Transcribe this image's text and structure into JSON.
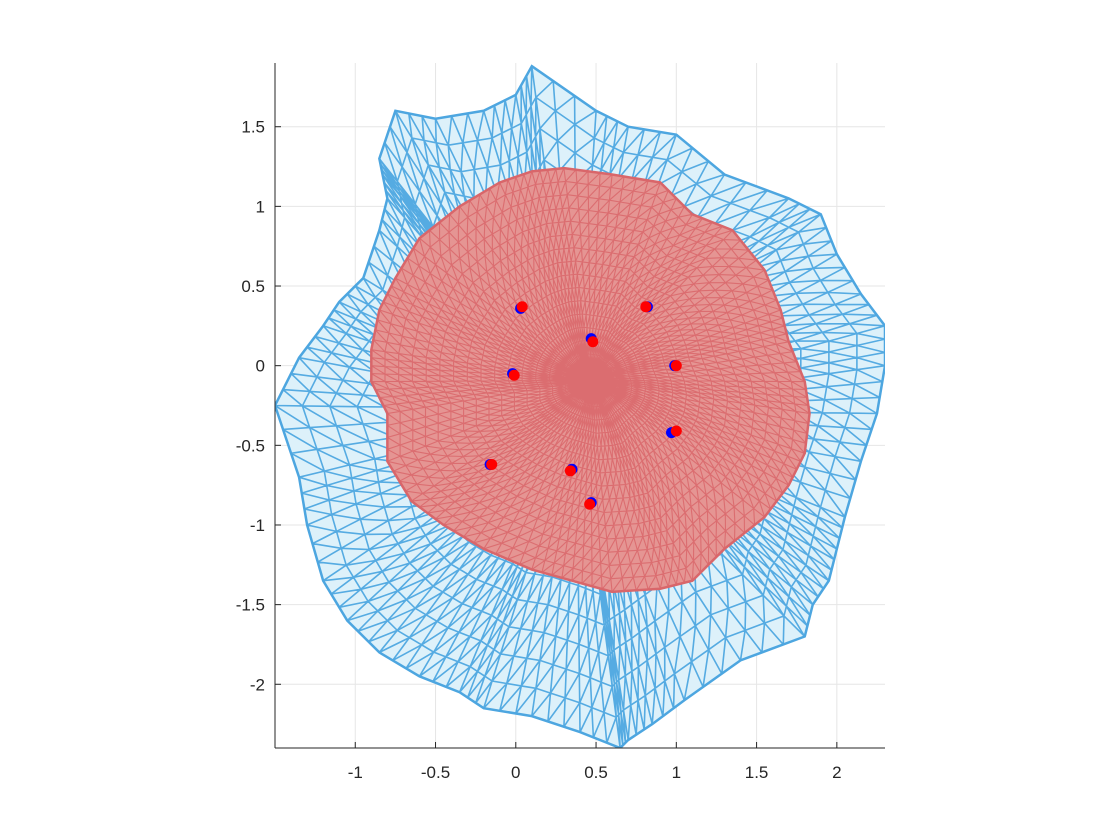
{
  "chart_data": {
    "type": "mesh",
    "title": "",
    "xlabel": "",
    "ylabel": "",
    "xlim": [
      -1.5,
      2.3
    ],
    "ylim": [
      -2.4,
      1.9
    ],
    "grid": true,
    "x_ticks": [
      -1,
      -0.5,
      0,
      0.5,
      1,
      1.5,
      2
    ],
    "x_tick_labels": [
      "-1",
      "-0.5",
      "0",
      "0.5",
      "1",
      "1.5",
      "2"
    ],
    "y_ticks": [
      1.5,
      1,
      0.5,
      0,
      -0.5,
      -1,
      -1.5,
      -2
    ],
    "y_tick_labels": [
      "1.5",
      "1",
      "0.5",
      "0",
      "-0.5",
      "-1",
      "-1.5",
      "-2"
    ],
    "series": [
      {
        "kind": "mesh",
        "color": "#4DA6E0",
        "fill": "#DDF1FA",
        "boundary": [
          [
            0.1,
            1.88
          ],
          [
            0.5,
            1.6
          ],
          [
            0.7,
            1.5
          ],
          [
            1.0,
            1.45
          ],
          [
            1.3,
            1.2
          ],
          [
            1.7,
            1.05
          ],
          [
            1.9,
            0.95
          ],
          [
            2.0,
            0.7
          ],
          [
            2.15,
            0.45
          ],
          [
            2.3,
            0.25
          ],
          [
            2.3,
            0.0
          ],
          [
            2.25,
            -0.3
          ],
          [
            2.15,
            -0.6
          ],
          [
            2.05,
            -0.95
          ],
          [
            2.0,
            -1.15
          ],
          [
            1.95,
            -1.35
          ],
          [
            1.85,
            -1.5
          ],
          [
            1.8,
            -1.7
          ],
          [
            1.4,
            -1.85
          ],
          [
            1.05,
            -2.1
          ],
          [
            0.85,
            -2.25
          ],
          [
            0.7,
            -2.35
          ],
          [
            0.65,
            -2.4
          ],
          [
            0.4,
            -2.3
          ],
          [
            0.1,
            -2.2
          ],
          [
            -0.2,
            -2.15
          ],
          [
            -0.35,
            -2.05
          ],
          [
            -0.6,
            -1.95
          ],
          [
            -0.85,
            -1.8
          ],
          [
            -1.05,
            -1.6
          ],
          [
            -1.2,
            -1.35
          ],
          [
            -1.3,
            -1.0
          ],
          [
            -1.35,
            -0.7
          ],
          [
            -1.5,
            -0.25
          ],
          [
            -1.35,
            0.05
          ],
          [
            -1.2,
            0.25
          ],
          [
            -1.1,
            0.4
          ],
          [
            -0.95,
            0.55
          ],
          [
            -0.85,
            0.85
          ],
          [
            -0.8,
            1.05
          ],
          [
            -0.83,
            1.2
          ],
          [
            -0.85,
            1.3
          ],
          [
            -0.75,
            1.6
          ],
          [
            -0.5,
            1.55
          ],
          [
            -0.2,
            1.6
          ],
          [
            0.0,
            1.7
          ]
        ]
      },
      {
        "kind": "mesh",
        "color": "#D9666A",
        "fill": "#E59593",
        "boundary": [
          [
            0.3,
            1.24
          ],
          [
            0.6,
            1.2
          ],
          [
            0.9,
            1.15
          ],
          [
            1.1,
            0.95
          ],
          [
            1.35,
            0.85
          ],
          [
            1.55,
            0.6
          ],
          [
            1.65,
            0.35
          ],
          [
            1.7,
            0.15
          ],
          [
            1.8,
            -0.1
          ],
          [
            1.83,
            -0.3
          ],
          [
            1.8,
            -0.55
          ],
          [
            1.7,
            -0.75
          ],
          [
            1.55,
            -0.95
          ],
          [
            1.3,
            -1.15
          ],
          [
            1.1,
            -1.35
          ],
          [
            0.9,
            -1.4
          ],
          [
            0.6,
            -1.42
          ],
          [
            0.35,
            -1.35
          ],
          [
            0.1,
            -1.28
          ],
          [
            -0.2,
            -1.15
          ],
          [
            -0.45,
            -1.0
          ],
          [
            -0.65,
            -0.85
          ],
          [
            -0.8,
            -0.6
          ],
          [
            -0.8,
            -0.3
          ],
          [
            -0.9,
            -0.1
          ],
          [
            -0.9,
            0.1
          ],
          [
            -0.85,
            0.35
          ],
          [
            -0.75,
            0.55
          ],
          [
            -0.6,
            0.8
          ],
          [
            -0.35,
            1.0
          ],
          [
            -0.1,
            1.15
          ],
          [
            0.1,
            1.22
          ]
        ]
      }
    ],
    "points": {
      "blue_color": "#0000FF",
      "red_color": "#FF0000",
      "blue": [
        [
          0.03,
          0.36
        ],
        [
          0.82,
          0.37
        ],
        [
          0.47,
          0.17
        ],
        [
          0.99,
          0.0
        ],
        [
          -0.02,
          -0.05
        ],
        [
          0.97,
          -0.42
        ],
        [
          -0.16,
          -0.62
        ],
        [
          0.35,
          -0.65
        ],
        [
          0.47,
          -0.86
        ]
      ],
      "red": [
        [
          0.04,
          0.37
        ],
        [
          0.81,
          0.37
        ],
        [
          0.48,
          0.15
        ],
        [
          1.0,
          0.0
        ],
        [
          -0.01,
          -0.06
        ],
        [
          1.0,
          -0.41
        ],
        [
          -0.15,
          -0.62
        ],
        [
          0.34,
          -0.66
        ],
        [
          0.46,
          -0.87
        ]
      ]
    }
  }
}
